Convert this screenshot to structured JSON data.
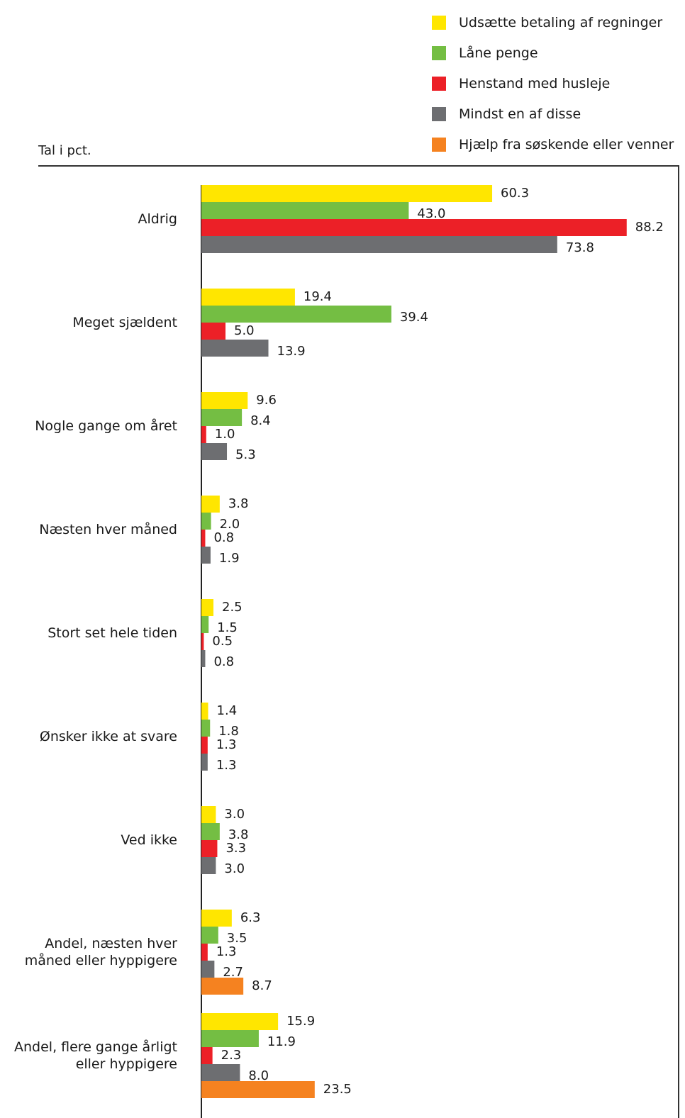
{
  "chart_data": {
    "type": "bar",
    "orientation": "horizontal",
    "unit_label": "Tal i pct.",
    "categories": [
      "Aldrig",
      "Meget sjældent",
      "Nogle gange om året",
      "Næsten hver måned",
      "Stort set hele tiden",
      "Ønsker ikke at svare",
      "Ved ikke",
      "Andel, næsten hver\nmåned eller hyppigere",
      "Andel, flere gange årligt\neller hyppigere"
    ],
    "series": [
      {
        "name": "Udsætte betaling af regninger",
        "color": "#FFE600",
        "values": [
          60.3,
          19.4,
          9.6,
          3.8,
          2.5,
          1.4,
          3.0,
          6.3,
          15.9
        ]
      },
      {
        "name": "Låne penge",
        "color": "#74BE43",
        "values": [
          43.0,
          39.4,
          8.4,
          2.0,
          1.5,
          1.8,
          3.8,
          3.5,
          11.9
        ]
      },
      {
        "name": "Henstand med husleje",
        "color": "#EC2027",
        "values": [
          88.2,
          5.0,
          1.0,
          0.8,
          0.5,
          1.3,
          3.3,
          1.3,
          2.3
        ]
      },
      {
        "name": "Mindst en af disse",
        "color": "#6D6E71",
        "values": [
          73.8,
          13.9,
          5.3,
          1.9,
          0.8,
          1.3,
          3.0,
          2.7,
          8.0
        ]
      },
      {
        "name": "Hjælp fra søskende eller venner",
        "color": "#F58220",
        "values": [
          null,
          null,
          null,
          null,
          null,
          null,
          null,
          8.7,
          23.5
        ]
      }
    ],
    "value_labels": [
      [
        "60.3",
        "43.0",
        "88.2",
        "73.8",
        ""
      ],
      [
        "19.4",
        "39.4",
        "5.0",
        "13.9",
        ""
      ],
      [
        "9.6",
        "8.4",
        "1.0",
        "5.3",
        ""
      ],
      [
        "3.8",
        "2.0",
        "0.8",
        "1.9",
        ""
      ],
      [
        "2.5",
        "1.5",
        "0.5",
        "0.8",
        ""
      ],
      [
        "1.4",
        "1.8",
        "1.3",
        "1.3",
        ""
      ],
      [
        "3.0",
        "3.8",
        "3.3",
        "3.0",
        ""
      ],
      [
        "6.3",
        "3.5",
        "1.3",
        "2.7",
        "8.7"
      ],
      [
        "15.9",
        "11.9",
        "2.3",
        "8.0",
        "23.5"
      ]
    ],
    "xlim": [
      0,
      100
    ],
    "grid": false,
    "legend_position": "top-right"
  }
}
